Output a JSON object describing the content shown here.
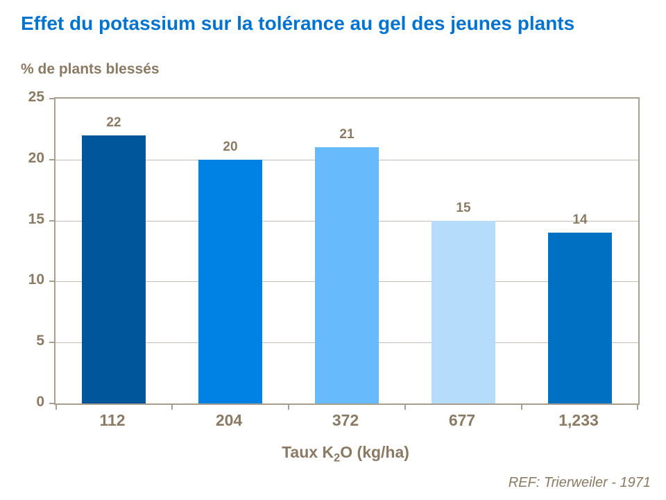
{
  "chart_data": {
    "type": "bar",
    "title": "Effet du potassium sur la tolérance au gel des jeunes plants",
    "ylabel": "% de plants blessés",
    "xlabel": "Taux K2O (kg/ha)",
    "xlabel_parts": {
      "pre": "Taux K",
      "sub": "2",
      "post": "O (kg/ha)"
    },
    "categories": [
      "112",
      "204",
      "372",
      "677",
      "1,233"
    ],
    "values": [
      22,
      20,
      21,
      15,
      14
    ],
    "ylim": [
      0,
      25
    ],
    "yticks": [
      0,
      5,
      10,
      15,
      20,
      25
    ],
    "grid": true,
    "legend": "none",
    "source": "REF: Trierweiler - 1971",
    "colors": {
      "title": "#0073CF",
      "text": "#8A7A63",
      "axis": "#A89E90",
      "gridline": "#C4BCB0",
      "bars": [
        "#00569A",
        "#0082E4",
        "#67BAFB",
        "#B6DCFB",
        "#0070C2"
      ]
    }
  }
}
